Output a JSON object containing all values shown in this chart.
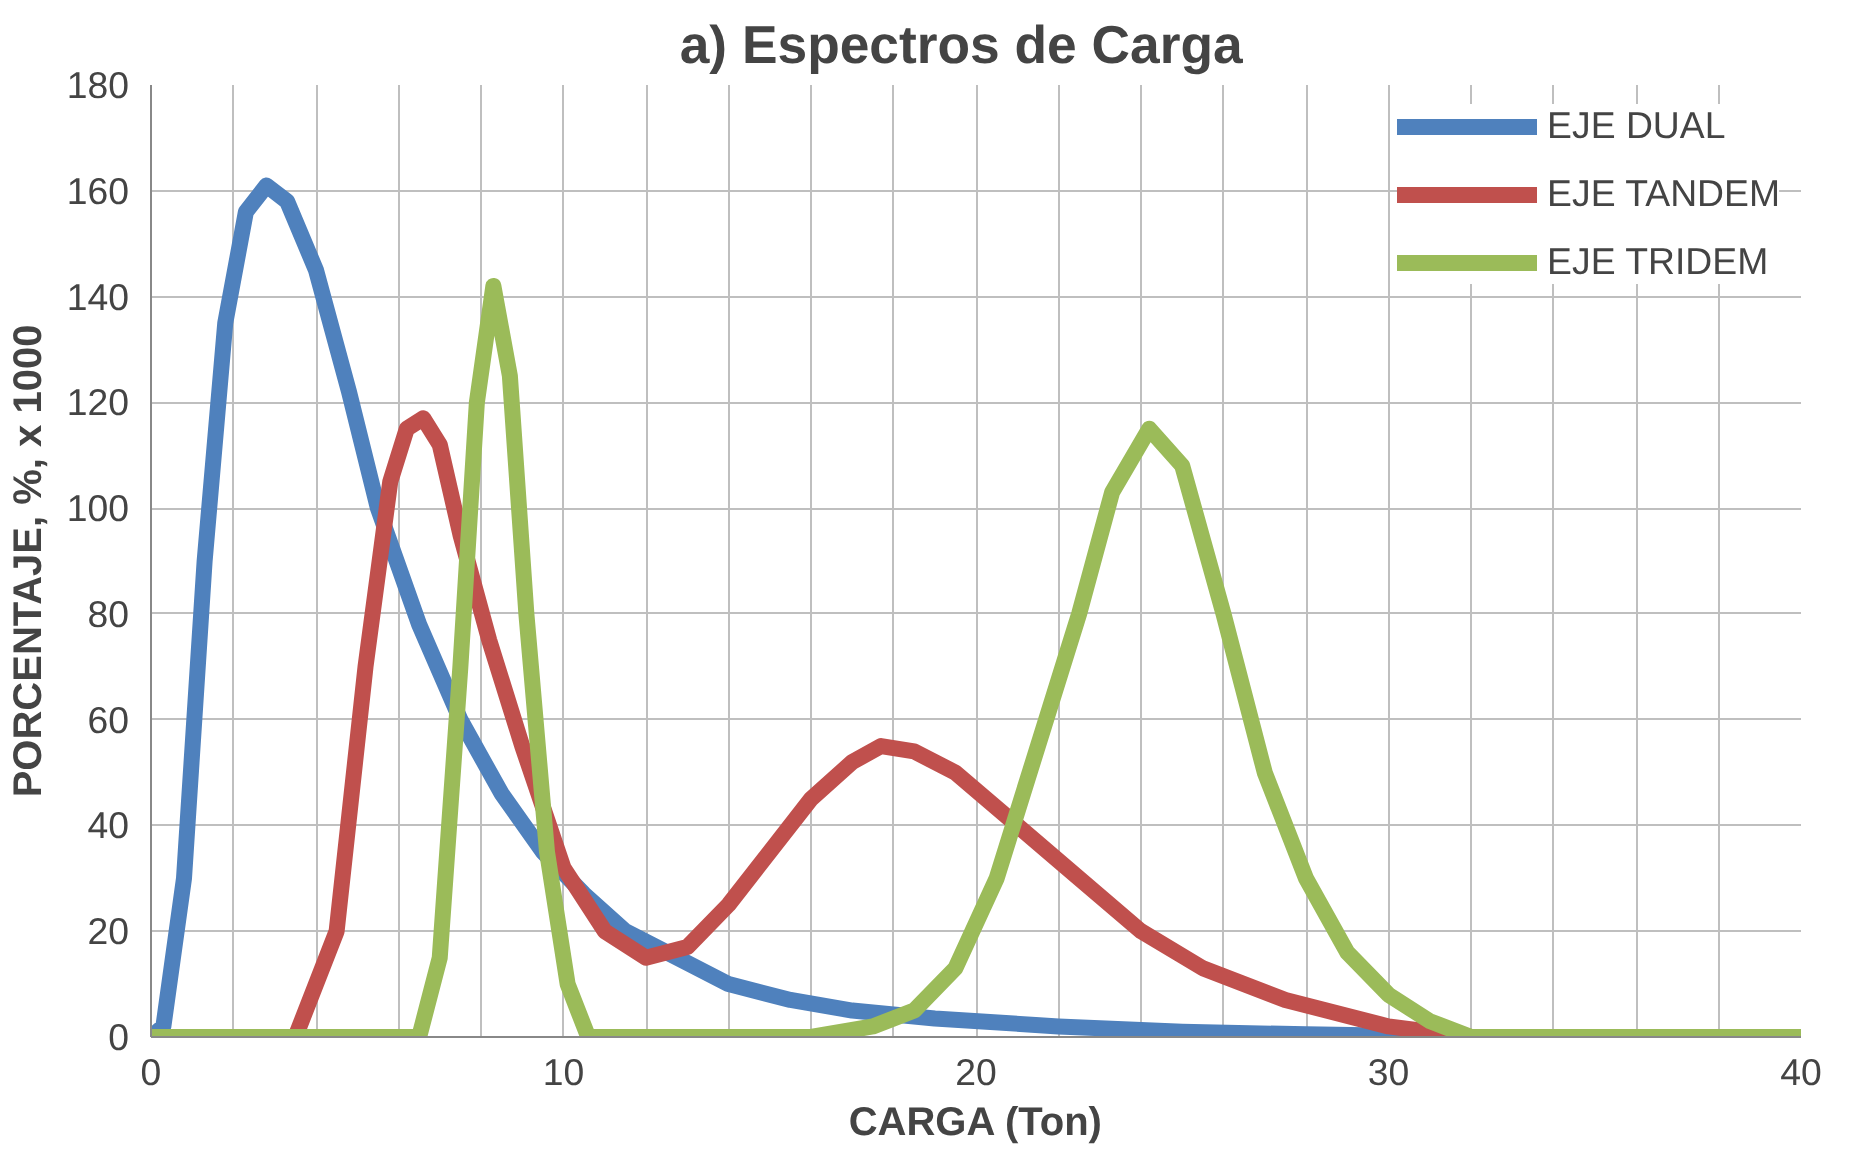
{
  "chart_data": {
    "type": "line",
    "title": "a)   Espectros de Carga",
    "xlabel": "CARGA (Ton)",
    "ylabel": "PORCENTAJE, %, x 1000",
    "xlim": [
      0,
      40
    ],
    "ylim": [
      0,
      180
    ],
    "xticks": [
      0,
      {
        "value": 2,
        "label": null
      },
      {
        "value": 4,
        "label": null
      },
      {
        "value": 6,
        "label": null
      },
      {
        "value": 8,
        "label": null
      },
      10,
      {
        "value": 12,
        "label": null
      },
      {
        "value": 14,
        "label": null
      },
      {
        "value": 16,
        "label": null
      },
      {
        "value": 18,
        "label": null
      },
      20,
      {
        "value": 22,
        "label": null
      },
      {
        "value": 24,
        "label": null
      },
      {
        "value": 26,
        "label": null
      },
      {
        "value": 28,
        "label": null
      },
      30,
      {
        "value": 32,
        "label": null
      },
      {
        "value": 34,
        "label": null
      },
      {
        "value": 36,
        "label": null
      },
      {
        "value": 38,
        "label": null
      },
      40
    ],
    "yticks": [
      0,
      20,
      40,
      60,
      80,
      100,
      120,
      140,
      160,
      180
    ],
    "grid": true,
    "legend": "top right",
    "marker": "none",
    "line_style": "solid",
    "series": [
      {
        "name": "EJE DUAL",
        "color": "#4f81bd",
        "x": [
          0,
          0.3,
          0.8,
          1.3,
          1.8,
          2.3,
          2.8,
          3.3,
          4,
          4.8,
          5.5,
          6.5,
          7.5,
          8.5,
          9.5,
          10.5,
          11.5,
          13,
          14,
          15.5,
          17,
          19,
          22,
          25,
          28,
          32,
          36,
          40
        ],
        "values": [
          0,
          2,
          30,
          90,
          135,
          156,
          161,
          158,
          145,
          122,
          100,
          78,
          60,
          46,
          35,
          27,
          20,
          14,
          10,
          7,
          5,
          3.5,
          2,
          1,
          0.5,
          0,
          0,
          0
        ]
      },
      {
        "name": "EJE TANDEM",
        "color": "#c0504d",
        "x": [
          0,
          3.5,
          4.5,
          5.2,
          5.8,
          6.2,
          6.6,
          7,
          7.5,
          8.2,
          9,
          10,
          11,
          12,
          13,
          14,
          15,
          16,
          17,
          17.7,
          18.5,
          19.5,
          21,
          22.5,
          24,
          25.5,
          27.5,
          30,
          32,
          36,
          40
        ],
        "values": [
          0,
          0,
          20,
          70,
          105,
          115,
          117,
          112,
          95,
          75,
          55,
          32,
          20,
          15,
          17,
          25,
          35,
          45,
          52,
          55,
          54,
          50,
          40,
          30,
          20,
          13,
          7,
          2,
          0,
          0,
          0
        ]
      },
      {
        "name": "EJE TRIDEM",
        "color": "#9bbb59",
        "x": [
          0,
          6.5,
          7,
          7.5,
          7.9,
          8.3,
          8.7,
          9.1,
          9.6,
          10.1,
          10.6,
          12,
          16,
          17.5,
          18.5,
          19.5,
          20.5,
          21.5,
          22.5,
          23.3,
          24.2,
          25,
          26,
          27,
          28,
          29,
          30,
          31,
          32,
          36,
          40
        ],
        "values": [
          0,
          0,
          15,
          70,
          120,
          142,
          125,
          80,
          35,
          10,
          0,
          0,
          0,
          2,
          5,
          13,
          30,
          55,
          80,
          103,
          115,
          108,
          80,
          50,
          30,
          16,
          8,
          3,
          0,
          0,
          0
        ]
      }
    ]
  }
}
